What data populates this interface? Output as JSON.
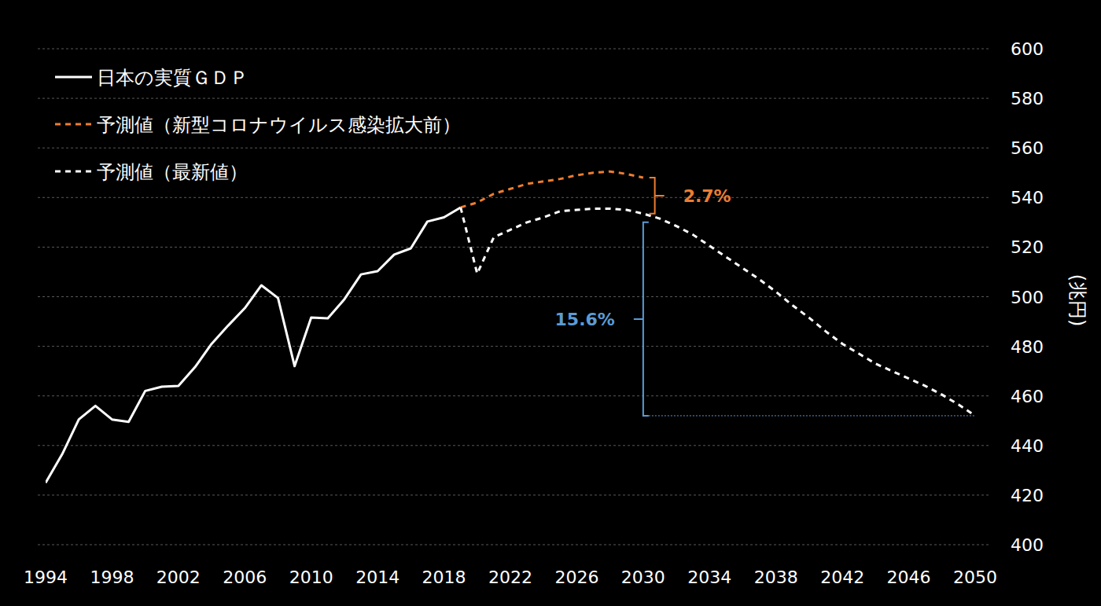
{
  "chart_data": {
    "type": "line",
    "y_label": "(兆円)",
    "x": [
      1994,
      1995,
      1996,
      1997,
      1998,
      1999,
      2000,
      2001,
      2002,
      2003,
      2004,
      2005,
      2006,
      2007,
      2008,
      2009,
      2010,
      2011,
      2012,
      2013,
      2014,
      2015,
      2016,
      2017,
      2018,
      2019,
      2020,
      2021,
      2022,
      2023,
      2024,
      2025,
      2026,
      2027,
      2028,
      2029,
      2030,
      2031,
      2032,
      2033,
      2034,
      2035,
      2036,
      2037,
      2038,
      2039,
      2040,
      2041,
      2042,
      2043,
      2044,
      2045,
      2046,
      2047,
      2048,
      2049,
      2050
    ],
    "series": [
      {
        "name": "日本の実質ＧＤＰ",
        "color": "#ffffff",
        "line_style": "solid",
        "values": [
          425,
          436.5,
          450.5,
          456,
          450.5,
          449.5,
          462,
          463.7,
          464,
          471.6,
          481,
          488.4,
          495.4,
          504.6,
          499.5,
          472,
          491.6,
          491.3,
          499,
          509,
          510.3,
          517,
          519.5,
          530.3,
          532,
          536,
          null,
          null,
          null,
          null,
          null,
          null,
          null,
          null,
          null,
          null,
          null,
          null,
          null,
          null,
          null,
          null,
          null,
          null,
          null,
          null,
          null,
          null,
          null,
          null,
          null,
          null,
          null,
          null,
          null,
          null,
          null
        ]
      },
      {
        "name": "予測値（新型コロナウイルス感染拡大前）",
        "color": "#ed7d31",
        "line_style": "dashed",
        "values": [
          null,
          null,
          null,
          null,
          null,
          null,
          null,
          null,
          null,
          null,
          null,
          null,
          null,
          null,
          null,
          null,
          null,
          null,
          null,
          null,
          null,
          null,
          null,
          null,
          null,
          536,
          538,
          541.5,
          543.5,
          545.5,
          546.5,
          547.5,
          549,
          550,
          550.5,
          549.5,
          548,
          null,
          null,
          null,
          null,
          null,
          null,
          null,
          null,
          null,
          null,
          null,
          null,
          null,
          null,
          null,
          null,
          null,
          null,
          null,
          null
        ]
      },
      {
        "name": "予測値（最新値）",
        "color": "#ffffff",
        "line_style": "dashed",
        "values": [
          null,
          null,
          null,
          null,
          null,
          null,
          null,
          null,
          null,
          null,
          null,
          null,
          null,
          null,
          null,
          null,
          null,
          null,
          null,
          null,
          null,
          null,
          null,
          null,
          null,
          536,
          509.3,
          524,
          527,
          530,
          532,
          534.5,
          535,
          535.5,
          535.5,
          535,
          533.5,
          531.5,
          528.5,
          525,
          520.5,
          516,
          511.5,
          507,
          502,
          496.5,
          491.5,
          486,
          481,
          477,
          473,
          470,
          467,
          464,
          460.5,
          456.5,
          452
        ]
      }
    ],
    "annotations": [
      {
        "text": "2.7%",
        "color": "#ed7d31",
        "x": 2030.7,
        "y_range": [
          548,
          533.5
        ]
      },
      {
        "text": "15.6%",
        "color": "#5b9bd5",
        "x": 2030,
        "y_range": [
          530,
          452
        ]
      }
    ],
    "xlim": [
      1994,
      2050
    ],
    "xticks": [
      1994,
      1998,
      2002,
      2006,
      2010,
      2014,
      2018,
      2022,
      2026,
      2030,
      2034,
      2038,
      2042,
      2046,
      2050
    ],
    "ylim": [
      400,
      600
    ],
    "yticks": [
      400,
      420,
      440,
      460,
      480,
      500,
      520,
      540,
      560,
      580,
      600
    ],
    "grid": true,
    "legend": "top-left"
  }
}
